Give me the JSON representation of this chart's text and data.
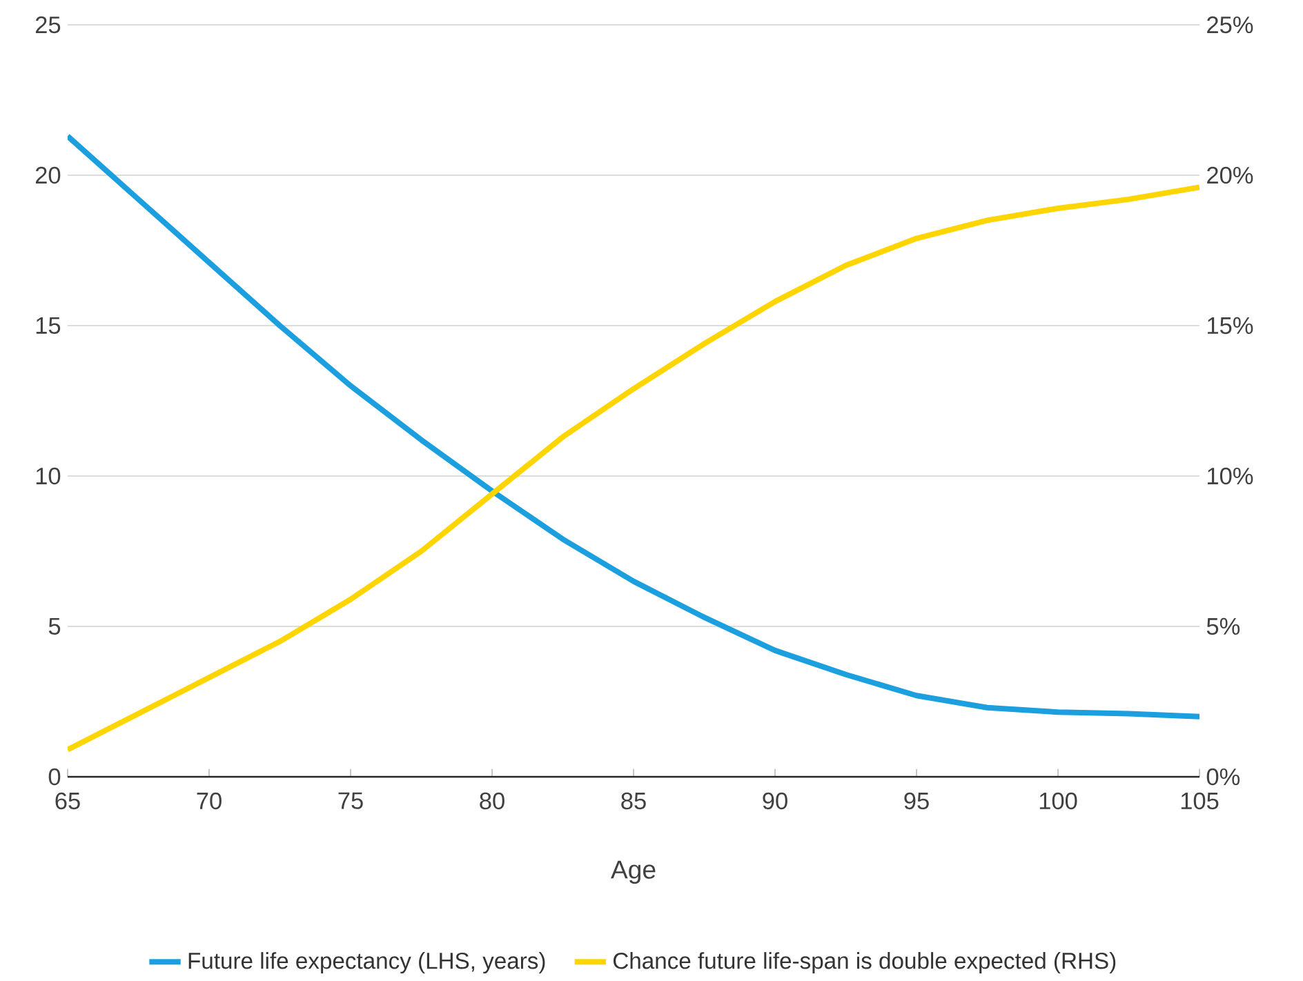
{
  "chart_data": {
    "type": "line",
    "xlabel": "Age",
    "x": [
      65,
      67.5,
      70,
      72.5,
      75,
      77.5,
      80,
      82.5,
      85,
      87.5,
      90,
      92.5,
      95,
      97.5,
      100,
      102.5,
      105
    ],
    "xlim": [
      65,
      105
    ],
    "xticks": [
      65,
      70,
      75,
      80,
      85,
      90,
      95,
      100,
      105
    ],
    "ylim": [
      0,
      25
    ],
    "yticks": [
      0,
      5,
      10,
      15,
      20,
      25
    ],
    "y2lim": [
      0,
      25
    ],
    "y2ticks": [
      {
        "value": 0,
        "label": "0%"
      },
      {
        "value": 5,
        "label": "5%"
      },
      {
        "value": 10,
        "label": "10%"
      },
      {
        "value": 15,
        "label": "15%"
      },
      {
        "value": 20,
        "label": "20%"
      },
      {
        "value": 25,
        "label": "25%"
      }
    ],
    "series": [
      {
        "name": "Future life expectancy (LHS, years)",
        "color": "#1b9fdf",
        "values": [
          21.3,
          19.2,
          17.1,
          15.0,
          13.0,
          11.2,
          9.5,
          7.9,
          6.5,
          5.3,
          4.2,
          3.4,
          2.7,
          2.3,
          2.15,
          2.1,
          2.0
        ]
      },
      {
        "name": "Chance future life-span is double expected (RHS)",
        "color": "#ffd500",
        "axis": "y2",
        "values": [
          0.9,
          2.1,
          3.3,
          4.5,
          5.9,
          7.5,
          9.4,
          11.3,
          12.9,
          14.4,
          15.8,
          17.0,
          17.9,
          18.5,
          18.9,
          19.2,
          19.6
        ]
      }
    ],
    "grid": "y",
    "legend": "bottom",
    "marker": "none",
    "line_style": "solid"
  }
}
